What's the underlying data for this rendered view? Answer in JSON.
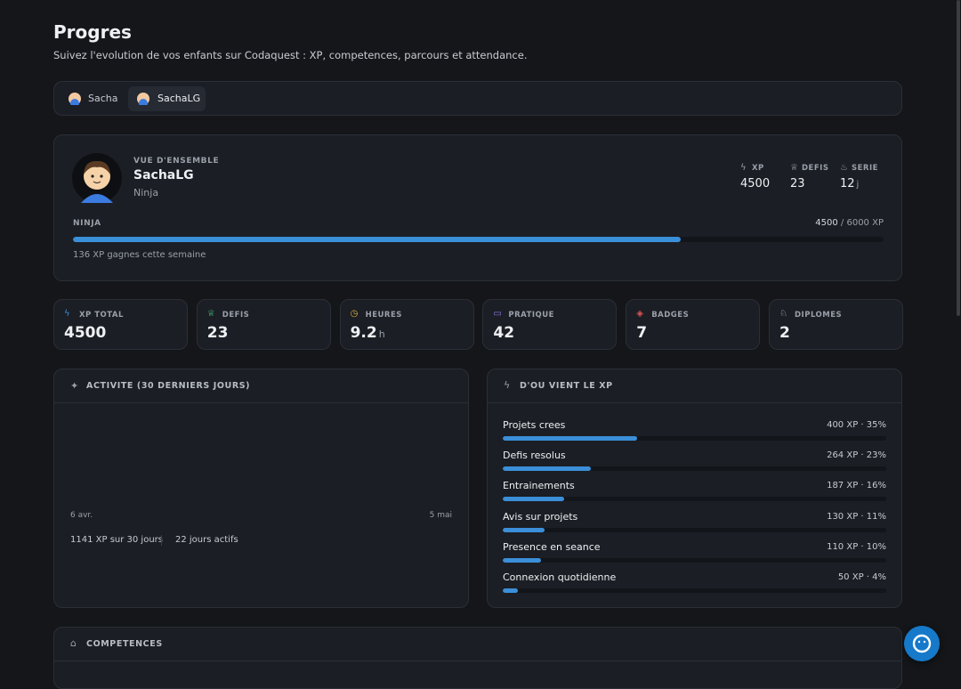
{
  "header": {
    "title": "Progres",
    "subtitle": "Suivez l'evolution de vos enfants sur Codaquest : XP, competences, parcours et attendance."
  },
  "tabs": [
    "Sacha",
    "SachaLG"
  ],
  "overview": {
    "label": "VUE D'ENSEMBLE",
    "name": "SachaLG",
    "rank": "Ninja",
    "stats": [
      {
        "label": "XP",
        "value": 4500
      },
      {
        "label": "DEFIS",
        "value": 23
      },
      {
        "label": "SERIE",
        "value": 12,
        "unit": "j"
      }
    ],
    "level": "NINJA",
    "current": 4500,
    "separator": "/",
    "max": 6000,
    "max_unit": "XP",
    "weekly": "136 XP gagnes cette semaine"
  },
  "cards": [
    {
      "label": "XP TOTAL",
      "value": 4500
    },
    {
      "label": "DEFIS",
      "value": 23
    },
    {
      "label": "HEURES",
      "value": 9.2,
      "unit": "h"
    },
    {
      "label": "PRATIQUE",
      "value": 42
    },
    {
      "label": "BADGES",
      "value": 7
    },
    {
      "label": "DIPLOMES",
      "value": 2
    }
  ],
  "activity": {
    "title": "ACTIVITE (30 DERNIERS JOURS)",
    "start": "6 avr.",
    "end": "5 mai",
    "summary": [
      "1141 XP sur 30 jours",
      "22 jours actifs"
    ]
  },
  "sources": {
    "title": "D'OU VIENT LE XP",
    "items": [
      {
        "label": "Projets crees",
        "percent": 35,
        "value_label": "400 XP · 35%"
      },
      {
        "label": "Defis resolus",
        "percent": 23,
        "value_label": "264 XP · 23%"
      },
      {
        "label": "Entrainements",
        "percent": 16,
        "value_label": "187 XP · 16%"
      },
      {
        "label": "Avis sur projets",
        "percent": 11,
        "value_label": "130 XP · 11%"
      },
      {
        "label": "Presence en seance",
        "percent": 10,
        "value_label": "110 XP · 10%"
      },
      {
        "label": "Connexion quotidienne",
        "percent": 4,
        "value_label": "50 XP · 4%"
      }
    ]
  },
  "competences": {
    "title": "COMPETENCES"
  }
}
